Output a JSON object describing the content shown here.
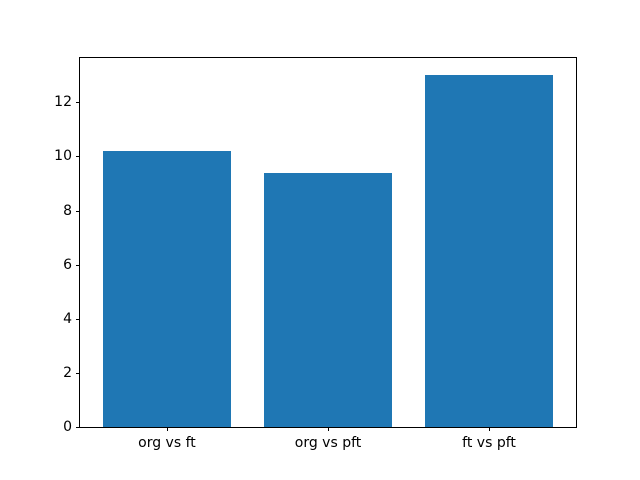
{
  "chart_data": {
    "type": "bar",
    "title": "",
    "xlabel": "",
    "ylabel": "",
    "categories": [
      "org vs ft",
      "org vs pft",
      "ft vs pft"
    ],
    "values": [
      10.2,
      9.4,
      13.0
    ],
    "ylim": [
      0,
      13.65
    ],
    "yticks": [
      0,
      2,
      4,
      6,
      8,
      10,
      12
    ],
    "bar_color": "#1f77b4",
    "axis_color": "#000000",
    "background_color": "#ffffff",
    "grid": false,
    "legend": null
  }
}
